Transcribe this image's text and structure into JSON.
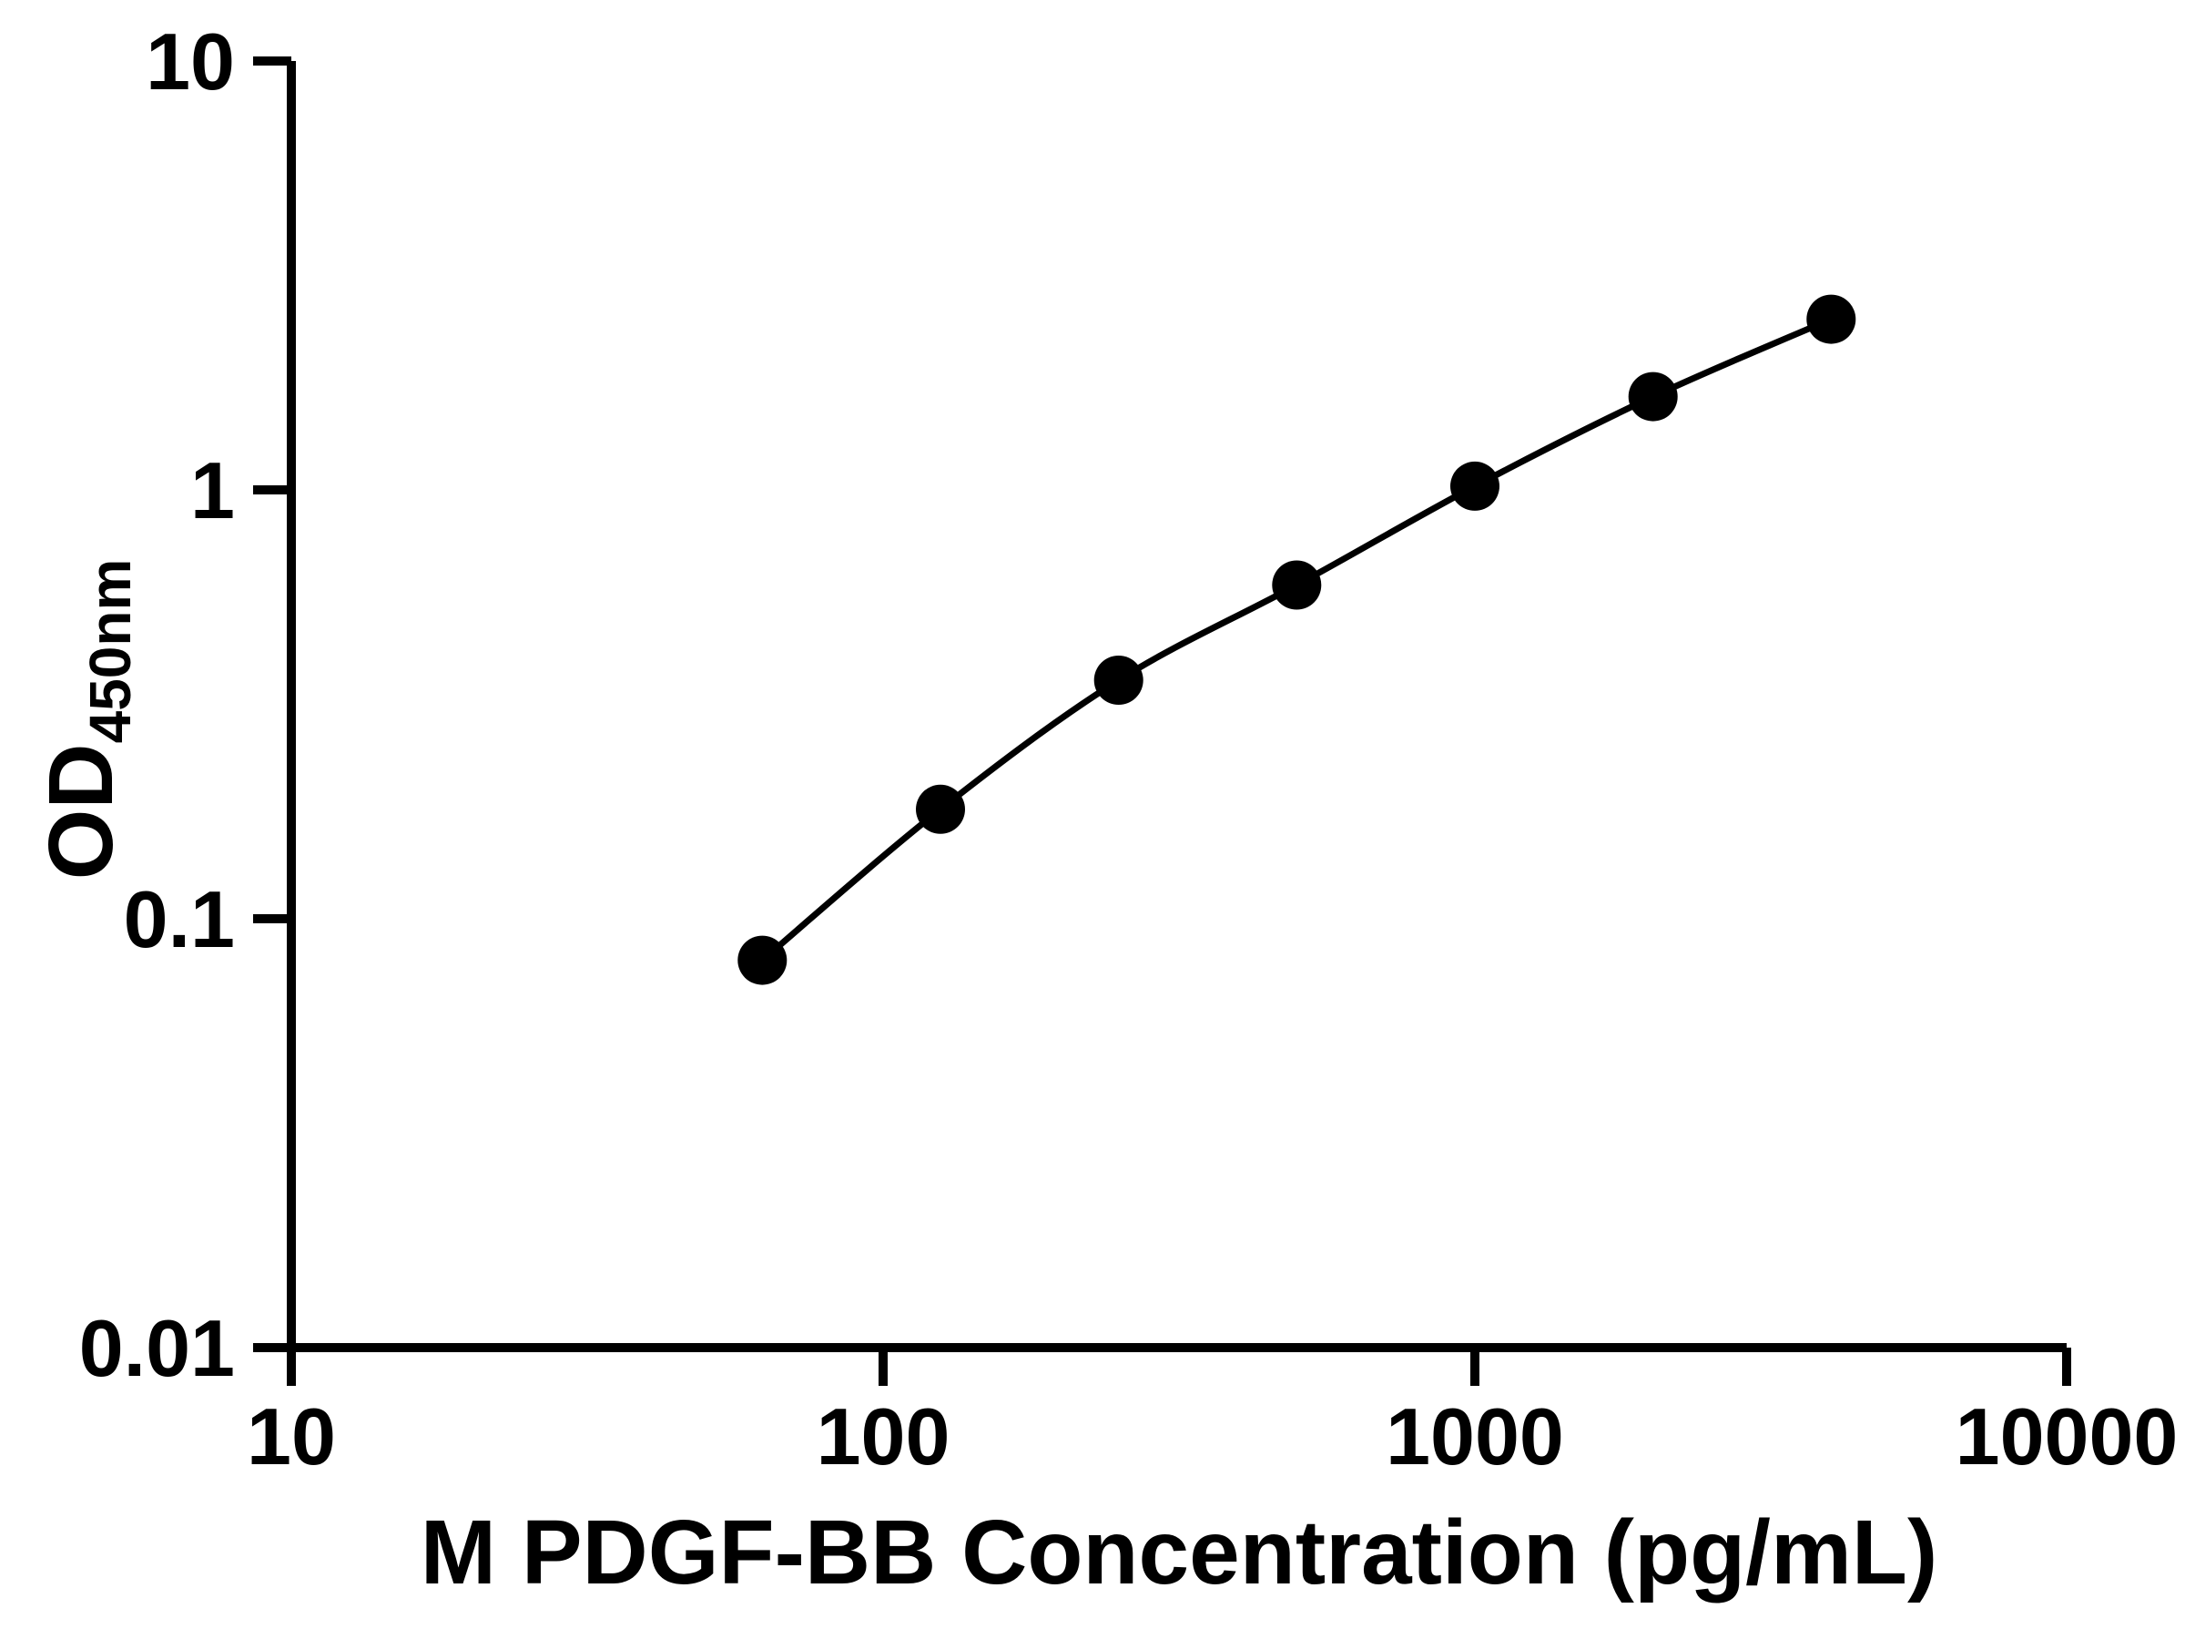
{
  "chart_data": {
    "type": "line",
    "title": "",
    "xlabel": "M PDGF-BB Concentration (pg/mL)",
    "ylabel": {
      "main": "OD",
      "sub": "450nm"
    },
    "x_scale": "log",
    "y_scale": "log",
    "xlim": [
      10,
      10000
    ],
    "ylim": [
      0.01,
      10
    ],
    "x_tick_values": [
      10,
      100,
      1000,
      10000
    ],
    "x_tick_labels": [
      "10",
      "100",
      "1000",
      "10000"
    ],
    "y_tick_values": [
      0.01,
      0.1,
      1,
      10
    ],
    "y_tick_labels": [
      "0.01",
      "0.1",
      "1",
      "10"
    ],
    "grid": false,
    "legend": false,
    "x": [
      62.5,
      125,
      250,
      500,
      1000,
      2000,
      4000
    ],
    "y": [
      0.08,
      0.18,
      0.36,
      0.6,
      1.02,
      1.65,
      2.5
    ],
    "marker": "circle",
    "marker_size": 27,
    "colors": {
      "line": "#000000",
      "marker": "#000000",
      "axis": "#000000",
      "text": "#000000",
      "background": "#ffffff"
    }
  }
}
